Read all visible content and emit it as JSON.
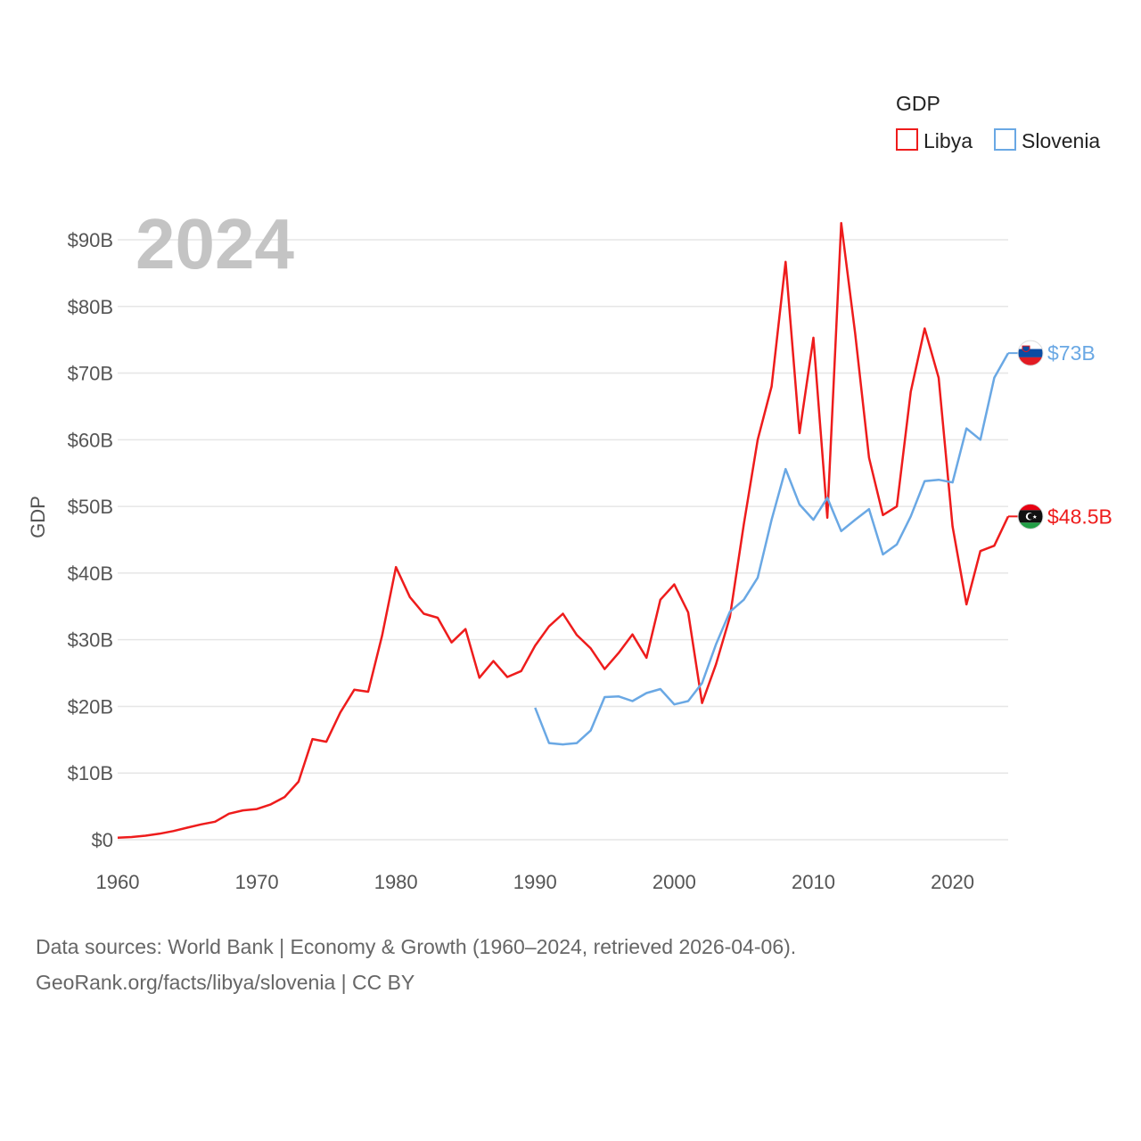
{
  "legend": {
    "title": "GDP",
    "items": [
      {
        "name": "Libya",
        "color": "#ee1c1c"
      },
      {
        "name": "Slovenia",
        "color": "#6aa8e4"
      }
    ]
  },
  "year_label": "2024",
  "footer": {
    "line1": "Data sources: World Bank | Economy & Growth (1960–2024, retrieved 2026-04-06).",
    "line2": "GeoRank.org/facts/libya/slovenia | CC BY"
  },
  "chart_data": {
    "type": "line",
    "title": "GDP",
    "xlabel": "",
    "ylabel": "GDP",
    "xlim": [
      1960,
      2024
    ],
    "ylim": [
      0,
      90
    ],
    "x_ticks": [
      1960,
      1970,
      1980,
      1990,
      2000,
      2010,
      2020
    ],
    "y_ticks": [
      0,
      10,
      20,
      30,
      40,
      50,
      60,
      70,
      80,
      90
    ],
    "y_tick_labels": [
      "$0",
      "$10B",
      "$20B",
      "$30B",
      "$40B",
      "$50B",
      "$60B",
      "$70B",
      "$80B",
      "$90B"
    ],
    "grid": true,
    "legend_position": "top-right",
    "series": [
      {
        "name": "Libya",
        "color": "#ee1c1c",
        "end_label": "$48.5B",
        "points": [
          [
            1960,
            0.3
          ],
          [
            1961,
            0.4
          ],
          [
            1962,
            0.6
          ],
          [
            1963,
            0.9
          ],
          [
            1964,
            1.3
          ],
          [
            1965,
            1.8
          ],
          [
            1966,
            2.3
          ],
          [
            1967,
            2.7
          ],
          [
            1968,
            3.9
          ],
          [
            1969,
            4.4
          ],
          [
            1970,
            4.6
          ],
          [
            1971,
            5.3
          ],
          [
            1972,
            6.4
          ],
          [
            1973,
            8.7
          ],
          [
            1974,
            15.1
          ],
          [
            1975,
            14.7
          ],
          [
            1976,
            19.1
          ],
          [
            1977,
            22.5
          ],
          [
            1978,
            22.2
          ],
          [
            1979,
            30.6
          ],
          [
            1980,
            40.9
          ],
          [
            1981,
            36.4
          ],
          [
            1982,
            33.9
          ],
          [
            1983,
            33.3
          ],
          [
            1984,
            29.6
          ],
          [
            1985,
            31.6
          ],
          [
            1986,
            24.3
          ],
          [
            1987,
            26.8
          ],
          [
            1988,
            24.4
          ],
          [
            1989,
            25.3
          ],
          [
            1990,
            29.1
          ],
          [
            1991,
            32.0
          ],
          [
            1992,
            33.9
          ],
          [
            1993,
            30.7
          ],
          [
            1994,
            28.7
          ],
          [
            1995,
            25.6
          ],
          [
            1996,
            28.0
          ],
          [
            1997,
            30.8
          ],
          [
            1998,
            27.3
          ],
          [
            1999,
            36.0
          ],
          [
            2000,
            38.3
          ],
          [
            2001,
            34.1
          ],
          [
            2002,
            20.5
          ],
          [
            2003,
            26.3
          ],
          [
            2004,
            33.4
          ],
          [
            2005,
            47.3
          ],
          [
            2006,
            60.0
          ],
          [
            2007,
            68.0
          ],
          [
            2008,
            86.7
          ],
          [
            2009,
            61.0
          ],
          [
            2010,
            75.3
          ],
          [
            2011,
            48.3
          ],
          [
            2012,
            92.5
          ],
          [
            2013,
            76.0
          ],
          [
            2014,
            57.3
          ],
          [
            2015,
            48.7
          ],
          [
            2016,
            50.0
          ],
          [
            2017,
            67.2
          ],
          [
            2018,
            76.7
          ],
          [
            2019,
            69.3
          ],
          [
            2020,
            47.0
          ],
          [
            2021,
            35.3
          ],
          [
            2022,
            43.3
          ],
          [
            2023,
            44.1
          ],
          [
            2024,
            48.5
          ]
        ]
      },
      {
        "name": "Slovenia",
        "color": "#6aa8e4",
        "end_label": "$73B",
        "points": [
          [
            1990,
            19.8
          ],
          [
            1991,
            14.5
          ],
          [
            1992,
            14.3
          ],
          [
            1993,
            14.5
          ],
          [
            1994,
            16.4
          ],
          [
            1995,
            21.4
          ],
          [
            1996,
            21.5
          ],
          [
            1997,
            20.8
          ],
          [
            1998,
            22.0
          ],
          [
            1999,
            22.6
          ],
          [
            2000,
            20.3
          ],
          [
            2001,
            20.8
          ],
          [
            2002,
            23.5
          ],
          [
            2003,
            29.3
          ],
          [
            2004,
            34.2
          ],
          [
            2005,
            36.0
          ],
          [
            2006,
            39.3
          ],
          [
            2007,
            48.0
          ],
          [
            2008,
            55.6
          ],
          [
            2009,
            50.3
          ],
          [
            2010,
            48.0
          ],
          [
            2011,
            51.3
          ],
          [
            2012,
            46.3
          ],
          [
            2013,
            48.0
          ],
          [
            2014,
            49.6
          ],
          [
            2015,
            42.8
          ],
          [
            2016,
            44.3
          ],
          [
            2017,
            48.5
          ],
          [
            2018,
            53.8
          ],
          [
            2019,
            54.0
          ],
          [
            2020,
            53.6
          ],
          [
            2021,
            61.7
          ],
          [
            2022,
            60.0
          ],
          [
            2023,
            69.3
          ],
          [
            2024,
            73.0
          ]
        ]
      }
    ]
  }
}
